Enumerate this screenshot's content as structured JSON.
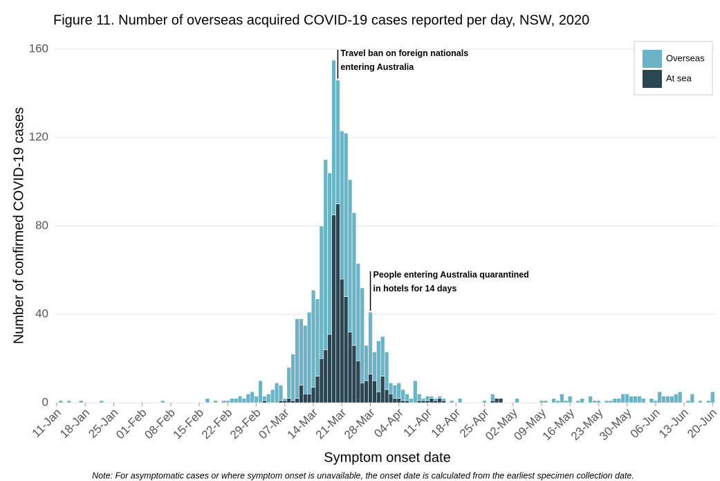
{
  "chart_data": {
    "type": "stacked_bar",
    "title": "Figure 11. Number of overseas acquired COVID-19 cases reported per day, NSW, 2020",
    "x_label": "Symptom onset date",
    "y_label": "Number of confirmed COVID-19 cases",
    "note": "Note: For asymptomatic cases or where symptom onset is unavailable, the onset date is calculated from the earliest specimen collection date.",
    "categories": [
      "11-Jan",
      null,
      null,
      null,
      null,
      null,
      null,
      "18-Jan",
      null,
      null,
      null,
      null,
      null,
      null,
      "25-Jan",
      null,
      null,
      null,
      null,
      null,
      null,
      "01-Feb",
      null,
      null,
      null,
      null,
      null,
      null,
      "08-Feb",
      null,
      null,
      null,
      null,
      null,
      null,
      "15-Feb",
      null,
      null,
      null,
      null,
      null,
      null,
      "22-Feb",
      null,
      null,
      null,
      null,
      null,
      null,
      "29-Feb",
      null,
      null,
      null,
      null,
      null,
      null,
      "07-Mar",
      null,
      null,
      null,
      null,
      null,
      null,
      "14-Mar",
      null,
      null,
      null,
      null,
      null,
      null,
      "21-Mar",
      null,
      null,
      null,
      null,
      null,
      null,
      "28-Mar",
      null,
      null,
      null,
      null,
      null,
      null,
      "04-Apr",
      null,
      null,
      null,
      null,
      null,
      null,
      "11-Apr",
      null,
      null,
      null,
      null,
      null,
      null,
      "18-Apr",
      null,
      null,
      null,
      null,
      null,
      null,
      "25-Apr",
      null,
      null,
      null,
      null,
      null,
      null,
      "02-May",
      null,
      null,
      null,
      null,
      null,
      null,
      "09-May",
      null,
      null,
      null,
      null,
      null,
      null,
      "16-May",
      null,
      null,
      null,
      null,
      null,
      null,
      "23-May",
      null,
      null,
      null,
      null,
      null,
      null,
      "30-May",
      null,
      null,
      null,
      null,
      null,
      null,
      "06-Jun",
      null,
      null,
      null,
      null,
      null,
      null,
      "13-Jun",
      null,
      null,
      null,
      null,
      null,
      null,
      "20-Jun"
    ],
    "series": [
      {
        "name": "Overseas",
        "color": "#6db3c6",
        "values": [
          0,
          1,
          0,
          1,
          0,
          0,
          1,
          0,
          0,
          0,
          0,
          1,
          0,
          0,
          0,
          0,
          0,
          0,
          0,
          0,
          0,
          0,
          0,
          0,
          0,
          0,
          1,
          0,
          0,
          0,
          0,
          0,
          0,
          0,
          0,
          0,
          0,
          2,
          0,
          1,
          0,
          1,
          1,
          2,
          2,
          3,
          2,
          4,
          5,
          3,
          10,
          2,
          4,
          6,
          9,
          7,
          1,
          14,
          21,
          36,
          30,
          31,
          37,
          44,
          35,
          60,
          86,
          73,
          70,
          56,
          67,
          74,
          69,
          60,
          44,
          43,
          16,
          28,
          13,
          23,
          18,
          17,
          5,
          6,
          7,
          5,
          3,
          2,
          10,
          3,
          1,
          2,
          1,
          1,
          1,
          1,
          0,
          1,
          0,
          2,
          0,
          0,
          0,
          0,
          0,
          1,
          0,
          3,
          0,
          0,
          0,
          0,
          0,
          2,
          0,
          0,
          0,
          0,
          0,
          1,
          1,
          0,
          2,
          1,
          4,
          1,
          3,
          0,
          1,
          2,
          0,
          3,
          1,
          1,
          0,
          1,
          1,
          2,
          2,
          4,
          4,
          3,
          3,
          3,
          2,
          0,
          2,
          1,
          5,
          3,
          3,
          3,
          4,
          5,
          0,
          1,
          4,
          0,
          1,
          0,
          1,
          5
        ]
      },
      {
        "name": "At sea",
        "color": "#2a4652",
        "values": [
          0,
          0,
          0,
          0,
          0,
          0,
          0,
          0,
          0,
          0,
          0,
          0,
          0,
          0,
          0,
          0,
          0,
          0,
          0,
          0,
          0,
          0,
          0,
          0,
          0,
          0,
          0,
          0,
          0,
          0,
          0,
          0,
          0,
          0,
          0,
          0,
          0,
          0,
          0,
          0,
          0,
          0,
          0,
          0,
          0,
          0,
          0,
          0,
          0,
          0,
          0,
          1,
          0,
          0,
          0,
          1,
          1,
          2,
          1,
          2,
          8,
          4,
          4,
          7,
          12,
          20,
          24,
          31,
          85,
          90,
          56,
          48,
          32,
          26,
          19,
          9,
          10,
          13,
          10,
          5,
          12,
          6,
          4,
          2,
          2,
          1,
          1,
          0,
          0,
          1,
          1,
          1,
          2,
          1,
          2,
          1,
          0,
          0,
          0,
          0,
          0,
          0,
          0,
          0,
          0,
          0,
          0,
          1,
          2,
          2,
          0,
          0,
          0,
          0,
          0,
          0,
          0,
          0,
          0,
          0,
          0,
          0,
          0,
          0,
          0,
          0,
          0,
          0,
          0,
          0,
          0,
          0,
          0,
          0,
          0,
          0,
          0,
          0,
          0,
          0,
          0,
          0,
          0,
          0,
          0,
          0,
          0,
          0,
          0,
          0,
          0,
          0,
          0,
          0,
          0,
          0,
          0,
          0,
          0,
          0,
          0,
          0
        ]
      }
    ],
    "ylim": [
      0,
      160
    ],
    "yticks": [
      0,
      40,
      80,
      120,
      160
    ],
    "grid": true,
    "legend": "top-right",
    "annotations": [
      {
        "lines": [
          "Travel ban on foreign nationals",
          "entering Australia"
        ]
      },
      {
        "lines": [
          "People entering Australia quarantined",
          "in hotels for 14 days"
        ]
      }
    ]
  }
}
